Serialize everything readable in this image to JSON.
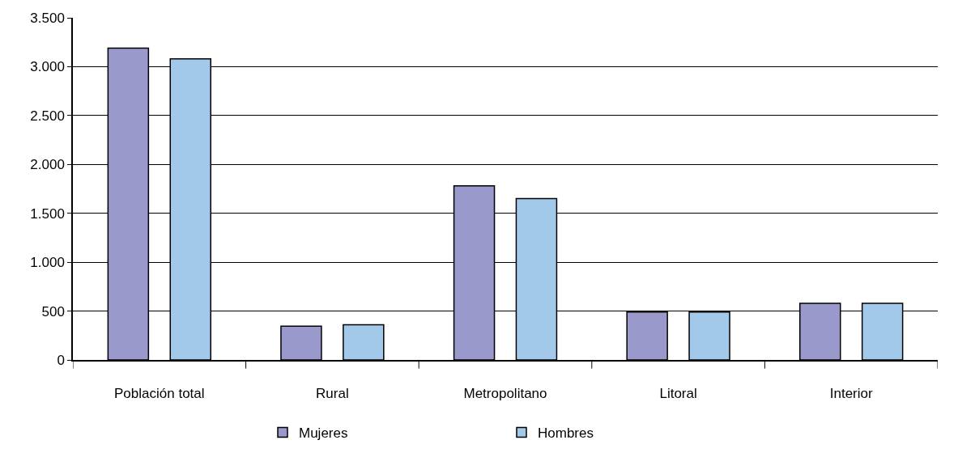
{
  "chart_data": {
    "type": "bar",
    "categories": [
      "Población total",
      "Rural",
      "Metropolitano",
      "Litoral",
      "Interior"
    ],
    "series": [
      {
        "name": "Mujeres",
        "color": "#9999cc",
        "values": [
          3190,
          345,
          1780,
          490,
          580
        ]
      },
      {
        "name": "Hombres",
        "color": "#a3c9ea",
        "values": [
          3080,
          360,
          1650,
          490,
          580
        ]
      }
    ],
    "ylim": [
      0,
      3500
    ],
    "yticks": [
      0,
      {
        "value": 500,
        "label": "500"
      },
      {
        "value": 1000,
        "label": "1.000"
      },
      {
        "value": 1500,
        "label": "1.500"
      },
      {
        "value": 2000,
        "label": "2.000"
      },
      {
        "value": 2500,
        "label": "2.500"
      },
      {
        "value": 3000,
        "label": "3.000"
      },
      {
        "value": 3500,
        "label": "3.500"
      }
    ],
    "grid": "y",
    "legend": "bottom"
  }
}
